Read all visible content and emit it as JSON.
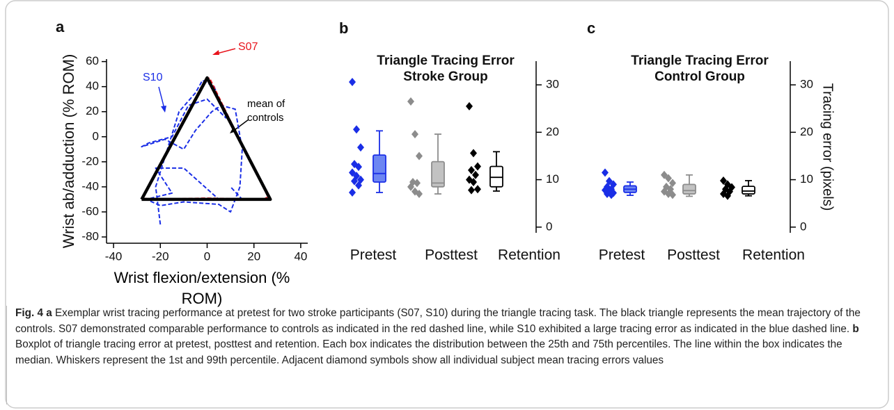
{
  "chart_data": [
    {
      "type": "line",
      "label": "a",
      "xlabel": "Wrist flexion/extension (% ROM)",
      "ylabel": "Wrist ab/adduction (% ROM)",
      "xlim": [
        -43,
        43
      ],
      "xticks": [
        -40,
        -20,
        0,
        20,
        40
      ],
      "ylim": [
        -85,
        62
      ],
      "yticks": [
        -80,
        -60,
        -40,
        -20,
        0,
        20,
        40,
        60
      ],
      "series": [
        {
          "name": "mean of controls",
          "color": "#000000",
          "dashed": false,
          "x": [
            -28,
            0,
            27,
            -28
          ],
          "values": [
            -50,
            47,
            -50,
            -50
          ]
        },
        {
          "name": "S07",
          "color": "#e8141c",
          "dashed": true,
          "x": [
            -27,
            -14,
            -1,
            1,
            12,
            26,
            24,
            0,
            -26,
            -27
          ],
          "values": [
            -47,
            0,
            45,
            47,
            5,
            -48,
            -50,
            -49,
            -50,
            -47
          ]
        },
        {
          "name": "S10",
          "color": "#1a2ee6",
          "dashed": true,
          "x": [
            -20,
            -22,
            -12,
            -5,
            -2,
            3,
            8,
            0,
            -8,
            -15,
            -25,
            -28,
            -18,
            -10,
            -5,
            2,
            6,
            12,
            15,
            14,
            10,
            5,
            -10,
            -20,
            -26,
            -15,
            -22,
            -20,
            -10,
            5,
            15,
            10
          ],
          "values": [
            -70,
            -40,
            20,
            35,
            45,
            40,
            15,
            30,
            25,
            0,
            -5,
            -8,
            -2,
            -10,
            5,
            20,
            25,
            22,
            -10,
            -40,
            -60,
            -54,
            -52,
            -55,
            -50,
            -45,
            -25,
            -25,
            -25,
            -50,
            -50,
            -40
          ]
        }
      ]
    },
    {
      "type": "box",
      "label": "b",
      "title": "Triangle Tracing Error",
      "subtitle": "Stroke Group",
      "categories": [
        "Pretest",
        "Posttest",
        "Retention"
      ],
      "colors": [
        "#1a2ee6",
        "#8c8c8c",
        "#000000"
      ],
      "box_fills": [
        "#6d86f2",
        "#c2c2c2",
        "#ffffff"
      ],
      "ylim": [
        -1.2,
        35
      ],
      "yticks": [
        0,
        10,
        20,
        30
      ],
      "points": [
        [
          30.6,
          20.6,
          16.8,
          13.3,
          12.7,
          11.5,
          10.8,
          10,
          9.7,
          8.8,
          7.3
        ],
        [
          26.5,
          19.6,
          15,
          9.5,
          9.3,
          8.5,
          7.5,
          7
        ],
        [
          25.5,
          15.6,
          12.8,
          12,
          11,
          10,
          9.5,
          8,
          7.8
        ]
      ],
      "boxes": [
        {
          "low": 7.3,
          "q1": 9.5,
          "median": 11.3,
          "q3": 15.2,
          "high": 20.3
        },
        {
          "low": 7,
          "q1": 8.5,
          "median": 9.3,
          "q3": 13.8,
          "high": 19.6
        },
        {
          "low": 7.6,
          "q1": 8.5,
          "median": 10.5,
          "q3": 12.8,
          "high": 15.9
        }
      ]
    },
    {
      "type": "box",
      "label": "c",
      "title": "Triangle Tracing Error",
      "subtitle": "Control Group",
      "ylabel": "Tracing error (pixels)",
      "categories": [
        "Pretest",
        "Posttest",
        "Retention"
      ],
      "colors": [
        "#1a2ee6",
        "#8c8c8c",
        "#000000"
      ],
      "box_fills": [
        "#6d86f2",
        "#c2c2c2",
        "#ffffff"
      ],
      "ylim": [
        -1.2,
        35
      ],
      "yticks": [
        0,
        10,
        20,
        30
      ],
      "points": [
        [
          11.5,
          9.7,
          9,
          8.5,
          8,
          7.8,
          7.5,
          7.2,
          7,
          6.8
        ],
        [
          11,
          10.3,
          9.3,
          8.5,
          8,
          7.5,
          7,
          6.8
        ],
        [
          9.8,
          9,
          8.4,
          8,
          7.5,
          7,
          6.6
        ]
      ],
      "boxes": [
        {
          "low": 6.7,
          "q1": 7.3,
          "median": 8,
          "q3": 8.7,
          "high": 9.5
        },
        {
          "low": 6.5,
          "q1": 7,
          "median": 7.7,
          "q3": 9,
          "high": 11
        },
        {
          "low": 6.6,
          "q1": 7,
          "median": 7.6,
          "q3": 8.6,
          "high": 9.8
        }
      ]
    }
  ],
  "caption": {
    "label": "Fig. 4",
    "parts": [
      {
        "letter": "a",
        "text": "Exemplar wrist tracing performance at pretest for two stroke participants (S07, S10) during the triangle tracing task. The black triangle represents the mean trajectory of the controls. S07 demonstrated comparable performance to controls as indicated in the red dashed line, while S10 exhibited a large tracing error as indicated in the blue dashed line."
      },
      {
        "letter": "b",
        "text": "Boxplot of triangle tracing error at pretest, posttest and retention. Each box indicates the distribution between the 25th and 75th percentiles. The line within the box indicates the median. Whiskers represent the 1st and 99th percentile. Adjacent diamond symbols show all individual subject mean tracing errors values"
      }
    ]
  }
}
